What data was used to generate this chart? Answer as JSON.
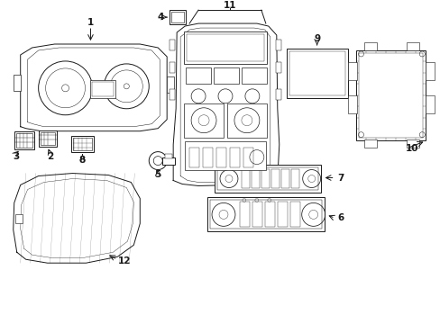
{
  "bg_color": "#ffffff",
  "line_color": "#1a1a1a",
  "lw": 0.7,
  "figsize": [
    4.89,
    3.6
  ],
  "dpi": 100,
  "xlim": [
    0,
    489
  ],
  "ylim": [
    0,
    360
  ]
}
